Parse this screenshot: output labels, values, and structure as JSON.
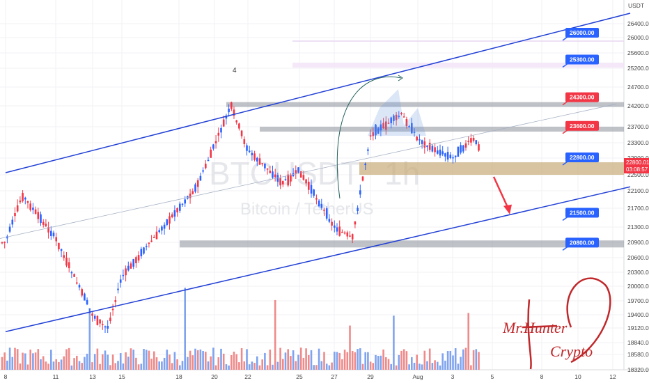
{
  "colors": {
    "bull": "#2962ff",
    "bear": "#f23645",
    "channel": "#2140d6",
    "zone_gray": "#8a8f99",
    "zone_tan": "#c8ab77",
    "label_blue": "#2962ff",
    "label_red": "#f23645",
    "arrow_red": "#f23645",
    "signature": "#c0282b"
  },
  "symbol": {
    "ticker": "BTCUSDT",
    "interval": "1h",
    "name": "Bitcoin / TetherUS"
  },
  "price_axis": {
    "unit": "USDT",
    "ticks": [
      "26400.00",
      "26000.00",
      "25600.00",
      "25200.00",
      "24700.00",
      "24200.00",
      "23700.00",
      "23300.00",
      "22900.00",
      "22500.00",
      "22100.00",
      "21700.00",
      "21300.00",
      "20900.00",
      "20600.00",
      "20300.00",
      "20000.00",
      "19700.00",
      "19400.00",
      "19120.00",
      "18840.00",
      "18580.00",
      "18320.00"
    ],
    "current_price": "22800.01",
    "countdown": "03:08:57"
  },
  "time_axis": {
    "labels": [
      "8",
      "11",
      "13",
      "15",
      "18",
      "20",
      "22",
      "25",
      "27",
      "29",
      "Aug",
      "3",
      "5",
      "8",
      "10",
      "12"
    ]
  },
  "levels": [
    {
      "price": 26000,
      "label": "26000.00",
      "color": "blue"
    },
    {
      "price": 25300,
      "label": "25300.00",
      "color": "blue"
    },
    {
      "price": 24300,
      "label": "24300.00",
      "color": "red"
    },
    {
      "price": 23600,
      "label": "23600.00",
      "color": "red"
    },
    {
      "price": 22800,
      "label": "22800.00",
      "color": "blue"
    },
    {
      "price": 21500,
      "label": "21500.00",
      "color": "blue"
    },
    {
      "price": 20800,
      "label": "20800.00",
      "color": "blue"
    }
  ],
  "annotations": {
    "wave_number": "4"
  },
  "signature": {
    "line1": "Mr.Hunter",
    "line2": "Crypto"
  },
  "chart_data": {
    "type": "candlestick",
    "x_start": "Jul 7",
    "y_unit": "USDT",
    "ylim": [
      18200,
      26900
    ],
    "price_series": [
      {
        "date": "Jul 7",
        "price": 20900
      },
      {
        "date": "Jul 8",
        "price": 22000
      },
      {
        "date": "Jul 10",
        "price": 21000
      },
      {
        "date": "Jul 12",
        "price": 19400
      },
      {
        "date": "Jul 13",
        "price": 19100
      },
      {
        "date": "Jul 14",
        "price": 20200
      },
      {
        "date": "Jul 16",
        "price": 21200
      },
      {
        "date": "Jul 18",
        "price": 22200
      },
      {
        "date": "Jul 20",
        "price": 24200
      },
      {
        "date": "Jul 21",
        "price": 23100
      },
      {
        "date": "Jul 23",
        "price": 22300
      },
      {
        "date": "Jul 24",
        "price": 22600
      },
      {
        "date": "Jul 26",
        "price": 21300
      },
      {
        "date": "Jul 27",
        "price": 21000
      },
      {
        "date": "Jul 28",
        "price": 23500
      },
      {
        "date": "Jul 30",
        "price": 24000
      },
      {
        "date": "Jul 31",
        "price": 23400
      },
      {
        "date": "Aug 1",
        "price": 23100
      },
      {
        "date": "Aug 2",
        "price": 22900
      },
      {
        "date": "Aug 3",
        "price": 23400
      },
      {
        "date": "Aug 4",
        "price": 22800
      }
    ],
    "zones": [
      {
        "label": "resistance",
        "from": 24200,
        "to": 24300
      },
      {
        "label": "resistance",
        "from": 23600,
        "to": 23700
      },
      {
        "label": "support",
        "from": 22500,
        "to": 22800
      },
      {
        "label": "support",
        "from": 20800,
        "to": 20950
      }
    ],
    "channel": {
      "upper": [
        {
          "date": "Jul 7",
          "price": 22550
        },
        {
          "date": "Aug 12",
          "price": 26700
        }
      ],
      "lower": [
        {
          "date": "Jul 7",
          "price": 19050
        },
        {
          "date": "Aug 12",
          "price": 22200
        }
      ]
    },
    "projection": {
      "from": 22450,
      "to": 21600
    }
  }
}
